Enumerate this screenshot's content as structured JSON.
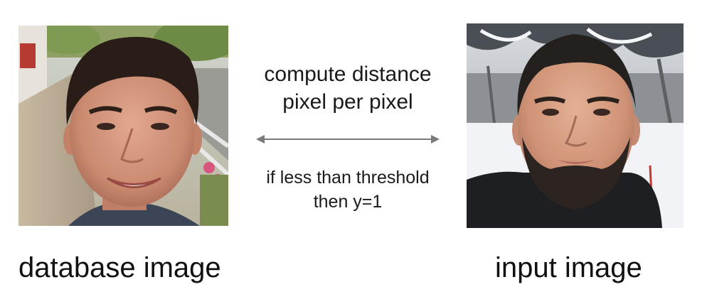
{
  "left_image": {
    "caption": "database image",
    "icon": "portrait-photo-icon"
  },
  "right_image": {
    "caption": "input image",
    "icon": "portrait-photo-icon"
  },
  "top_text": {
    "line1": "compute distance",
    "line2": "pixel per pixel"
  },
  "bottom_text": {
    "line1": "if less than threshold",
    "line2": "then y=1"
  },
  "arrow": {
    "icon": "double-headed-arrow-icon",
    "color": "#7a7a7a"
  }
}
